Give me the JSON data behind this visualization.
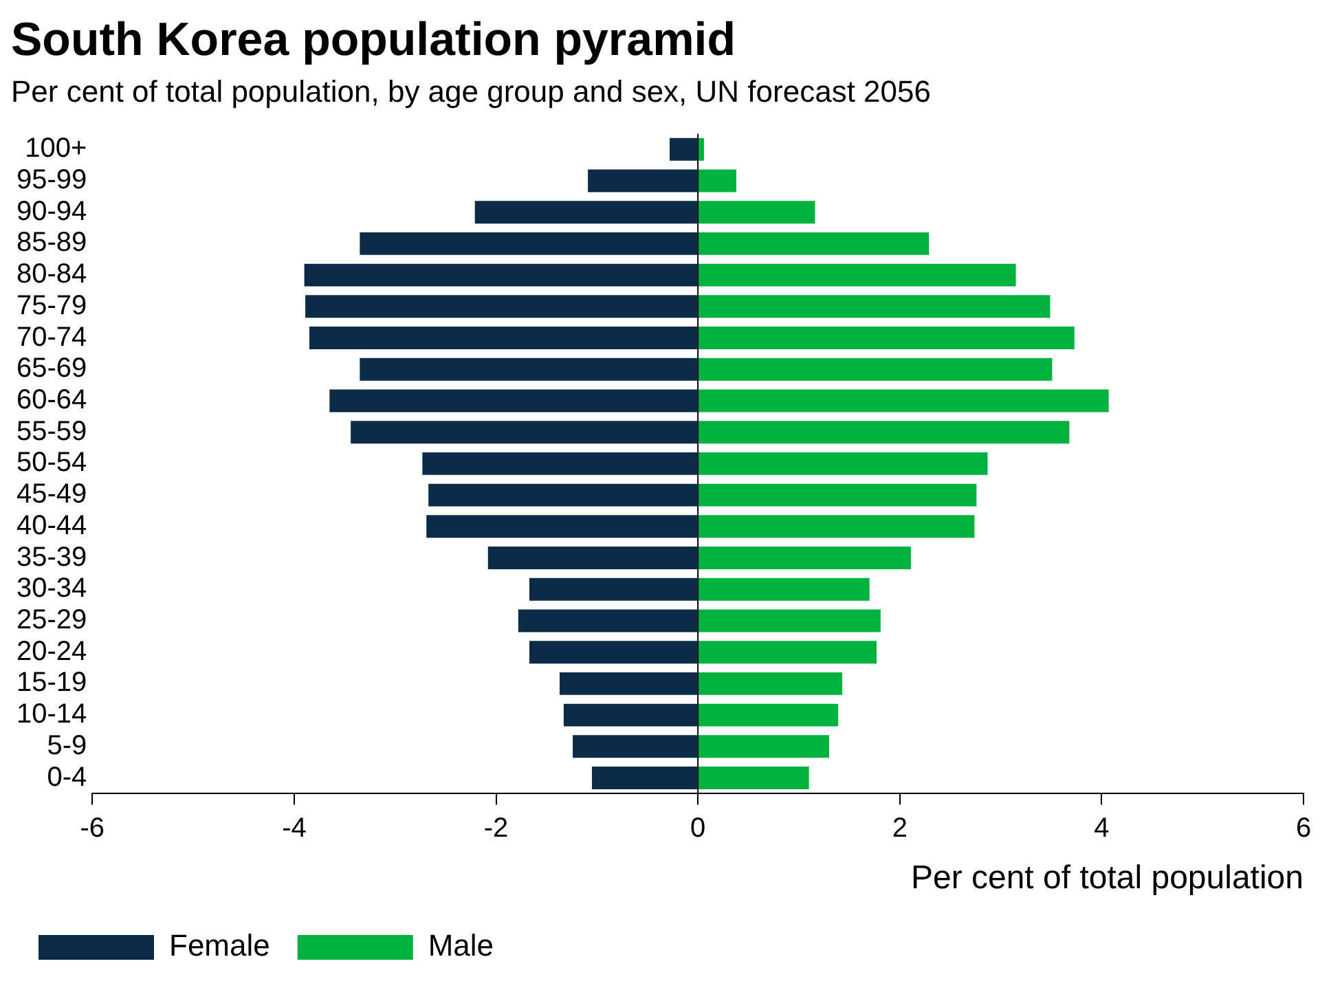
{
  "chart_data": {
    "type": "bar",
    "orientation": "horizontal",
    "stacked": true,
    "title": "South Korea population pyramid",
    "subtitle": "Per cent of total population, by age group and sex, UN forecast 2056",
    "xlabel": "Per cent of total population",
    "categories": [
      "100+",
      "95-99",
      "90-94",
      "85-89",
      "80-84",
      "75-79",
      "70-74",
      "65-69",
      "60-64",
      "55-59",
      "50-54",
      "45-49",
      "40-44",
      "35-39",
      "30-34",
      "25-29",
      "20-24",
      "15-19",
      "10-14",
      "5-9",
      "0-4"
    ],
    "series": [
      {
        "name": "Female",
        "color": "#0c2b47",
        "values": [
          -0.28,
          -1.09,
          -2.21,
          -3.35,
          -3.9,
          -3.89,
          -3.85,
          -3.35,
          -3.65,
          -3.44,
          -2.73,
          -2.67,
          -2.69,
          -2.08,
          -1.67,
          -1.78,
          -1.67,
          -1.37,
          -1.33,
          -1.24,
          -1.05
        ]
      },
      {
        "name": "Male",
        "color": "#00b140",
        "values": [
          0.06,
          0.38,
          1.16,
          2.29,
          3.15,
          3.49,
          3.73,
          3.51,
          4.07,
          3.68,
          2.87,
          2.76,
          2.74,
          2.11,
          1.7,
          1.81,
          1.77,
          1.43,
          1.39,
          1.3,
          1.1
        ]
      }
    ],
    "xlim": [
      -6,
      6
    ],
    "xticks": [
      -6,
      -4,
      -2,
      0,
      2,
      4,
      6
    ],
    "grid": false,
    "ref_lines": [
      {
        "axis": "x",
        "value": 0,
        "color": "#000000"
      }
    ],
    "legend": "bottom left"
  }
}
